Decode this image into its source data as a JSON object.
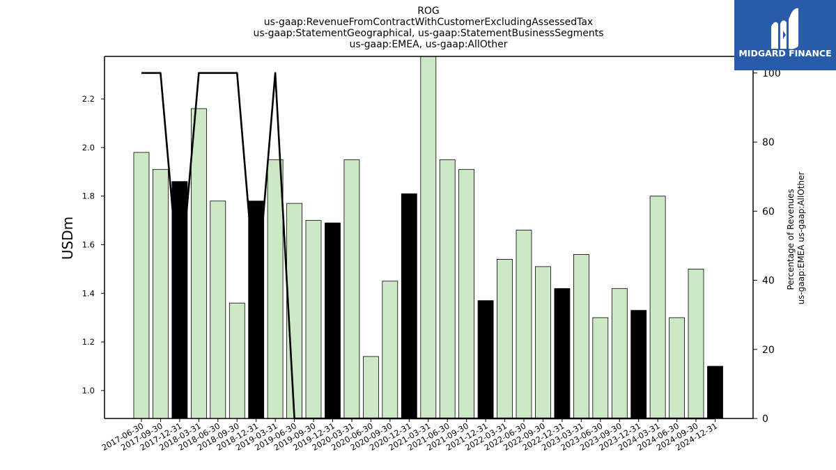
{
  "logo": {
    "text": "MIDGARD FINANCE",
    "bg_color": "#2a5aaa"
  },
  "chart_data": {
    "type": "bar",
    "title_lines": [
      "ROG",
      "us-gaap:RevenueFromContractWithCustomerExcludingAssessedTax",
      "us-gaap:StatementGeographical, us-gaap:StatementBusinessSegments",
      "us-gaap:EMEA, us-gaap:AllOther"
    ],
    "ylabel": "USDm",
    "ylabel_right_lines": [
      "Percentage of Revenues",
      "us-gaap:EMEA us-gaap:AllOther"
    ],
    "ylim": [
      0.885,
      2.375
    ],
    "yticks": [
      "1.0",
      "1.2",
      "1.4",
      "1.6",
      "1.8",
      "2.0",
      "2.2"
    ],
    "ylim_right": [
      0,
      104.8
    ],
    "yticks_right": [
      "0",
      "20",
      "40",
      "60",
      "80",
      "100"
    ],
    "colors": {
      "light": "#cde8c5",
      "dark": "#000000",
      "line": "#000000"
    },
    "categories": [
      "2017-06-30",
      "2017-09-30",
      "2017-12-31",
      "2018-03-31",
      "2018-06-30",
      "2018-09-30",
      "2018-12-31",
      "2019-03-31",
      "2019-06-30",
      "2019-09-30",
      "2019-12-31",
      "2020-03-31",
      "2020-06-30",
      "2020-09-30",
      "2020-12-31",
      "2021-03-31",
      "2021-06-30",
      "2021-09-30",
      "2021-12-31",
      "2022-03-31",
      "2022-06-30",
      "2022-09-30",
      "2022-12-31",
      "2023-03-31",
      "2023-06-30",
      "2023-09-30",
      "2023-12-31",
      "2024-03-31",
      "2024-06-30",
      "2024-09-30",
      "2024-12-31"
    ],
    "values": [
      1.98,
      1.91,
      1.86,
      2.16,
      1.78,
      1.36,
      1.78,
      1.95,
      1.77,
      1.7,
      1.69,
      1.95,
      1.14,
      1.45,
      1.81,
      2.38,
      1.95,
      1.91,
      1.37,
      1.54,
      1.66,
      1.51,
      1.42,
      1.56,
      1.3,
      1.42,
      1.33,
      1.8,
      1.3,
      1.5,
      1.1
    ],
    "dark_bars": [
      false,
      false,
      true,
      false,
      false,
      false,
      true,
      false,
      false,
      false,
      true,
      false,
      false,
      false,
      true,
      false,
      false,
      false,
      true,
      false,
      false,
      false,
      true,
      false,
      false,
      false,
      true,
      false,
      false,
      false,
      true
    ],
    "line_values": [
      100,
      100,
      37,
      100,
      100,
      100,
      34,
      100,
      0,
      0,
      0,
      0,
      0,
      0,
      0,
      0,
      0,
      0,
      0,
      0,
      0,
      0,
      0,
      0,
      0,
      0,
      0,
      0,
      0,
      0,
      0
    ]
  }
}
